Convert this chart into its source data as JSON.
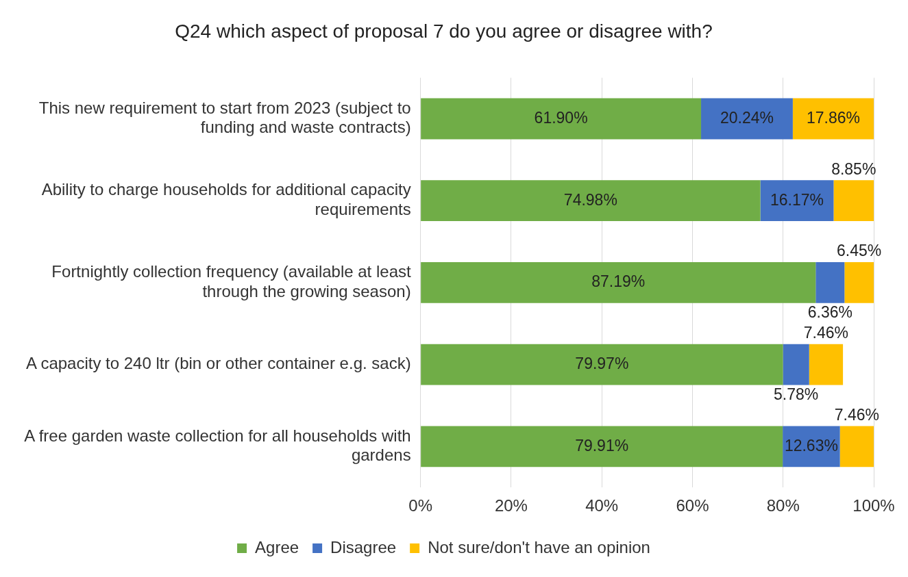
{
  "chart_data": {
    "type": "bar",
    "orientation": "horizontal",
    "stacked": true,
    "title": "Q24 which aspect of proposal 7 do you agree or disagree with?",
    "categories": [
      "This new requirement to start from 2023 (subject to funding and waste contracts)",
      "Ability to charge households for additional capacity requirements",
      "Fortnightly collection frequency (available at least through the growing season)",
      "A capacity to 240 ltr (bin or other container e.g. sack)",
      "A free garden waste collection for all households with gardens"
    ],
    "series": [
      {
        "name": "Agree",
        "color": "#70ad47",
        "values": [
          61.9,
          74.98,
          87.19,
          79.97,
          79.91
        ],
        "value_labels": [
          "61.90%",
          "74.98%",
          "87.19%",
          "79.97%",
          "79.91%"
        ]
      },
      {
        "name": "Disagree",
        "color": "#4472c4",
        "values": [
          20.24,
          16.17,
          6.36,
          5.78,
          12.63
        ],
        "value_labels": [
          "20.24%",
          "16.17%",
          "6.36%",
          "5.78%",
          "12.63%"
        ]
      },
      {
        "name": "Not sure/don't have an opinion",
        "color": "#ffc000",
        "values": [
          17.86,
          8.85,
          6.45,
          7.46,
          7.46
        ],
        "value_labels": [
          "17.86%",
          "8.85%",
          "6.45%",
          "7.46%",
          "7.46%"
        ]
      }
    ],
    "xlim": [
      0,
      100
    ],
    "xticks": [
      {
        "value": 0,
        "label": "0%"
      },
      {
        "value": 20,
        "label": "20%"
      },
      {
        "value": 40,
        "label": "40%"
      },
      {
        "value": 60,
        "label": "60%"
      },
      {
        "value": 80,
        "label": "80%"
      },
      {
        "value": 100,
        "label": "100%"
      }
    ],
    "grid": "x",
    "legend": "bottom"
  }
}
